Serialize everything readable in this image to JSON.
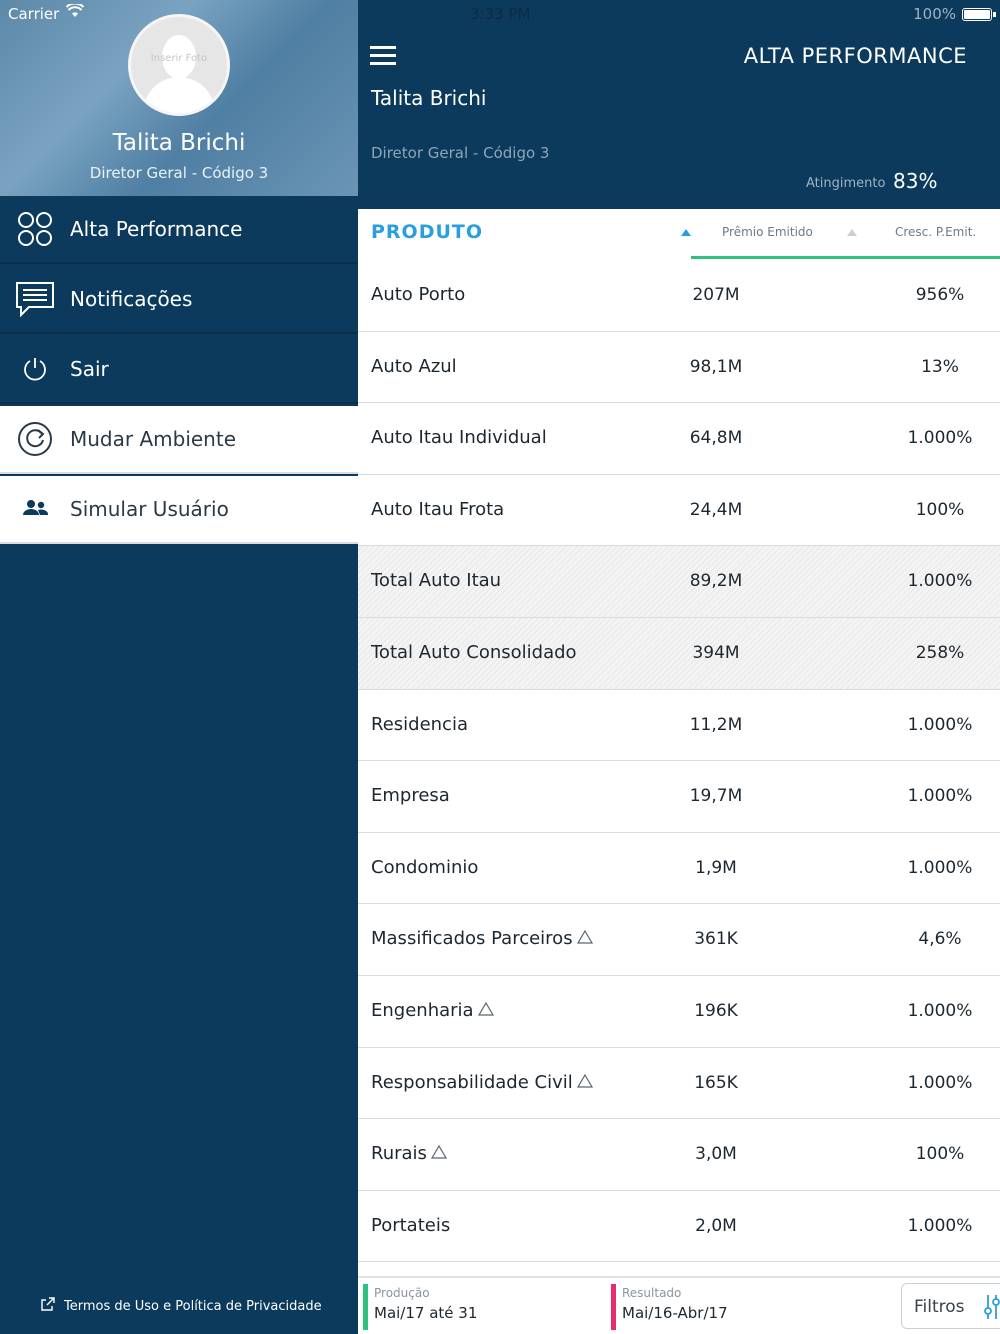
{
  "status_bar": {
    "carrier": "Carrier",
    "time": "3:33 PM",
    "battery": "100%"
  },
  "sidebar": {
    "avatar_text": "Inserir Foto",
    "user_name": "Talita Brichi",
    "user_role": "Diretor Geral - Código 3",
    "items": [
      {
        "label": "Alta Performance",
        "icon": "grid-circles-icon"
      },
      {
        "label": "Notificações",
        "icon": "chat-icon"
      },
      {
        "label": "Sair",
        "icon": "power-icon"
      },
      {
        "label": "Mudar Ambiente",
        "icon": "refresh-icon"
      },
      {
        "label": "Simular Usuário",
        "icon": "users-icon"
      }
    ],
    "terms": "Termos de Uso e Política de Privacidade"
  },
  "header": {
    "title": "ALTA PERFORMANCE",
    "user_name": "Talita Brichi",
    "user_role": "Diretor Geral - Código 3",
    "atingimento_label": "Atingimento",
    "atingimento_value": "83%"
  },
  "table": {
    "col_produto": "PRODUTO",
    "col_premio": "Prêmio Emitido",
    "col_cresc": "Cresc. P.Emit.",
    "rows": [
      {
        "produto": "Auto Porto",
        "premio": "207M",
        "cresc": "956%",
        "total": false,
        "warn": false
      },
      {
        "produto": "Auto Azul",
        "premio": "98,1M",
        "cresc": "13%",
        "total": false,
        "warn": false
      },
      {
        "produto": "Auto Itau Individual",
        "premio": "64,8M",
        "cresc": "1.000%",
        "total": false,
        "warn": false
      },
      {
        "produto": "Auto Itau Frota",
        "premio": "24,4M",
        "cresc": "100%",
        "total": false,
        "warn": false
      },
      {
        "produto": "Total Auto Itau",
        "premio": "89,2M",
        "cresc": "1.000%",
        "total": true,
        "warn": false
      },
      {
        "produto": "Total Auto Consolidado",
        "premio": "394M",
        "cresc": "258%",
        "total": true,
        "warn": false
      },
      {
        "produto": "Residencia",
        "premio": "11,2M",
        "cresc": "1.000%",
        "total": false,
        "warn": false
      },
      {
        "produto": "Empresa",
        "premio": "19,7M",
        "cresc": "1.000%",
        "total": false,
        "warn": false
      },
      {
        "produto": "Condominio",
        "premio": "1,9M",
        "cresc": "1.000%",
        "total": false,
        "warn": false
      },
      {
        "produto": "Massificados Parceiros",
        "premio": "361K",
        "cresc": "4,6%",
        "total": false,
        "warn": true
      },
      {
        "produto": "Engenharia",
        "premio": "196K",
        "cresc": "1.000%",
        "total": false,
        "warn": true
      },
      {
        "produto": "Responsabilidade Civil",
        "premio": "165K",
        "cresc": "1.000%",
        "total": false,
        "warn": true
      },
      {
        "produto": "Rurais",
        "premio": "3,0M",
        "cresc": "100%",
        "total": false,
        "warn": true
      },
      {
        "produto": "Portateis",
        "premio": "2,0M",
        "cresc": "1.000%",
        "total": false,
        "warn": false
      }
    ]
  },
  "footer": {
    "producao_label": "Produção",
    "producao_value": "Mai/17 até 31",
    "resultado_label": "Resultado",
    "resultado_value": "Mai/16-Abr/17",
    "filtros_label": "Filtros"
  },
  "colors": {
    "navy": "#0b3a5c",
    "accent_blue": "#2a9fe0",
    "green": "#2ec27e",
    "pink": "#e1306c"
  }
}
